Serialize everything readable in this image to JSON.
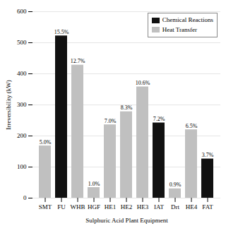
{
  "chart_data": {
    "type": "bar",
    "categories": [
      "SMT",
      "FU",
      "WHB",
      "HGF",
      "HE1",
      "HE2",
      "HE3",
      "IAT",
      "Drt",
      "HE4",
      "FAT"
    ],
    "values": [
      168,
      522,
      428,
      34,
      236,
      278,
      358,
      242,
      30,
      220,
      126
    ],
    "colors": [
      "#c0c0c0",
      "#111111",
      "#c0c0c0",
      "#c0c0c0",
      "#c0c0c0",
      "#c0c0c0",
      "#c0c0c0",
      "#111111",
      "#c0c0c0",
      "#c0c0c0",
      "#111111"
    ],
    "annotations": [
      "5.0%",
      "15.5%",
      "12.7%",
      "1.0%",
      "7.0%",
      "8.3%",
      "10.6%",
      "7.2%",
      "0.9%",
      "6.5%",
      "3.7%"
    ],
    "xlabel": "Sulphuric Acid Plant Equipment",
    "ylabel": "Irreversibility (kW)",
    "ylim": [
      0,
      600
    ],
    "yticks": [
      0,
      100,
      200,
      300,
      400,
      500,
      600
    ],
    "grid": true,
    "legend": "upper right",
    "legend_entries": [
      {
        "name": "Chemical Reactions",
        "color": "#111111"
      },
      {
        "name": "Heat Transfer",
        "color": "#c0c0c0"
      }
    ]
  }
}
